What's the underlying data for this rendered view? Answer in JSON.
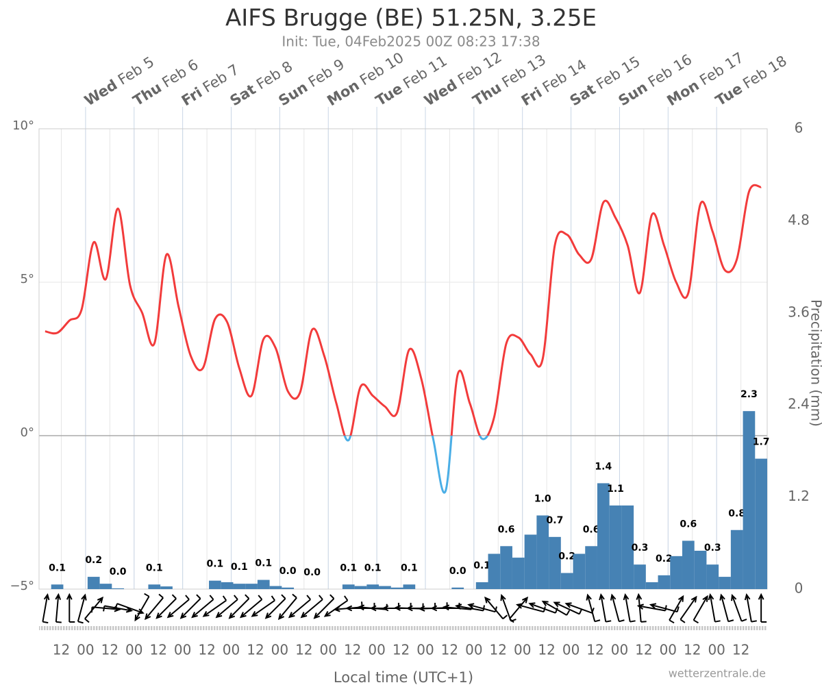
{
  "chart_data": {
    "type": "meteogram",
    "title": "AIFS Brugge (BE) 51.25N, 3.25E",
    "subtitle": "Init: Tue, 04Feb2025 00Z 08:23 17:38",
    "x_label": "Local time (UTC+1)",
    "y2_label": "Precipitation (mm)",
    "credit": "wetterzentrale.de",
    "xlim": [
      "2025-02-04T01:00",
      "2025-02-19T01:00"
    ],
    "ylim": [
      -5,
      10
    ],
    "yticks": [
      {
        "value": -5,
        "label": "−5°"
      },
      {
        "value": 0,
        "label": "0°"
      },
      {
        "value": 5,
        "label": "5°"
      },
      {
        "value": 10,
        "label": "10°"
      }
    ],
    "y2lim": [
      0,
      6
    ],
    "y2ticks": [
      0,
      1.2,
      2.4,
      3.6,
      4.8,
      6
    ],
    "grid": true,
    "day_ticks": [
      {
        "value": "2025-02-05T00:00",
        "weekday": "Wed",
        "day": "Feb 5"
      },
      {
        "value": "2025-02-06T00:00",
        "weekday": "Thu",
        "day": "Feb 6"
      },
      {
        "value": "2025-02-07T00:00",
        "weekday": "Fri",
        "day": "Feb 7"
      },
      {
        "value": "2025-02-08T00:00",
        "weekday": "Sat",
        "day": "Feb 8"
      },
      {
        "value": "2025-02-09T00:00",
        "weekday": "Sun",
        "day": "Feb 9"
      },
      {
        "value": "2025-02-10T00:00",
        "weekday": "Mon",
        "day": "Feb 10"
      },
      {
        "value": "2025-02-11T00:00",
        "weekday": "Tue",
        "day": "Feb 11"
      },
      {
        "value": "2025-02-12T00:00",
        "weekday": "Wed",
        "day": "Feb 12"
      },
      {
        "value": "2025-02-13T00:00",
        "weekday": "Thu",
        "day": "Feb 13"
      },
      {
        "value": "2025-02-14T00:00",
        "weekday": "Fri",
        "day": "Feb 14"
      },
      {
        "value": "2025-02-15T00:00",
        "weekday": "Sat",
        "day": "Feb 15"
      },
      {
        "value": "2025-02-16T00:00",
        "weekday": "Sun",
        "day": "Feb 16"
      },
      {
        "value": "2025-02-17T00:00",
        "weekday": "Mon",
        "day": "Feb 17"
      },
      {
        "value": "2025-02-18T00:00",
        "weekday": "Tue",
        "day": "Feb 18"
      }
    ],
    "xticks": [
      {
        "value": "2025-02-04T12:00",
        "label": "12"
      },
      {
        "value": "2025-02-05T00:00",
        "label": "00"
      },
      {
        "value": "2025-02-05T12:00",
        "label": "12"
      },
      {
        "value": "2025-02-06T00:00",
        "label": "00"
      },
      {
        "value": "2025-02-06T12:00",
        "label": "12"
      },
      {
        "value": "2025-02-07T00:00",
        "label": "00"
      },
      {
        "value": "2025-02-07T12:00",
        "label": "12"
      },
      {
        "value": "2025-02-08T00:00",
        "label": "00"
      },
      {
        "value": "2025-02-08T12:00",
        "label": "12"
      },
      {
        "value": "2025-02-09T00:00",
        "label": "00"
      },
      {
        "value": "2025-02-09T12:00",
        "label": "12"
      },
      {
        "value": "2025-02-10T00:00",
        "label": "00"
      },
      {
        "value": "2025-02-10T12:00",
        "label": "12"
      },
      {
        "value": "2025-02-11T00:00",
        "label": "00"
      },
      {
        "value": "2025-02-11T12:00",
        "label": "12"
      },
      {
        "value": "2025-02-12T00:00",
        "label": "00"
      },
      {
        "value": "2025-02-12T12:00",
        "label": "12"
      },
      {
        "value": "2025-02-13T00:00",
        "label": "00"
      },
      {
        "value": "2025-02-13T12:00",
        "label": "12"
      },
      {
        "value": "2025-02-14T00:00",
        "label": "00"
      },
      {
        "value": "2025-02-14T12:00",
        "label": "12"
      },
      {
        "value": "2025-02-15T00:00",
        "label": "00"
      },
      {
        "value": "2025-02-15T12:00",
        "label": "12"
      },
      {
        "value": "2025-02-16T00:00",
        "label": "00"
      },
      {
        "value": "2025-02-16T12:00",
        "label": "12"
      },
      {
        "value": "2025-02-17T00:00",
        "label": "00"
      },
      {
        "value": "2025-02-17T12:00",
        "label": "12"
      },
      {
        "value": "2025-02-18T00:00",
        "label": "00"
      },
      {
        "value": "2025-02-18T12:00",
        "label": "12"
      }
    ],
    "x": [
      "2025-02-04T04:00",
      "2025-02-04T10:00",
      "2025-02-04T16:00",
      "2025-02-04T22:00",
      "2025-02-05T04:00",
      "2025-02-05T10:00",
      "2025-02-05T16:00",
      "2025-02-05T22:00",
      "2025-02-06T04:00",
      "2025-02-06T10:00",
      "2025-02-06T16:00",
      "2025-02-06T22:00",
      "2025-02-07T04:00",
      "2025-02-07T10:00",
      "2025-02-07T16:00",
      "2025-02-07T22:00",
      "2025-02-08T04:00",
      "2025-02-08T10:00",
      "2025-02-08T16:00",
      "2025-02-08T22:00",
      "2025-02-09T04:00",
      "2025-02-09T10:00",
      "2025-02-09T16:00",
      "2025-02-09T22:00",
      "2025-02-10T04:00",
      "2025-02-10T10:00",
      "2025-02-10T16:00",
      "2025-02-10T22:00",
      "2025-02-11T04:00",
      "2025-02-11T10:00",
      "2025-02-11T16:00",
      "2025-02-11T22:00",
      "2025-02-12T04:00",
      "2025-02-12T10:00",
      "2025-02-12T16:00",
      "2025-02-12T22:00",
      "2025-02-13T04:00",
      "2025-02-13T10:00",
      "2025-02-13T16:00",
      "2025-02-13T22:00",
      "2025-02-14T04:00",
      "2025-02-14T10:00",
      "2025-02-14T16:00",
      "2025-02-14T22:00",
      "2025-02-15T04:00",
      "2025-02-15T10:00",
      "2025-02-15T16:00",
      "2025-02-15T22:00",
      "2025-02-16T04:00",
      "2025-02-16T10:00",
      "2025-02-16T16:00",
      "2025-02-16T22:00",
      "2025-02-17T04:00",
      "2025-02-17T10:00",
      "2025-02-17T16:00",
      "2025-02-17T22:00",
      "2025-02-18T04:00",
      "2025-02-18T10:00",
      "2025-02-18T16:00",
      "2025-02-18T22:00"
    ],
    "bar_hours": 6,
    "temperature": {
      "color_above": "#f23b3b",
      "color_below": "#4aaee6",
      "values": [
        3.4,
        3.35,
        3.75,
        4.1,
        6.3,
        5.1,
        7.4,
        4.9,
        4.0,
        3.0,
        5.9,
        4.2,
        2.6,
        2.2,
        3.8,
        3.7,
        2.2,
        1.3,
        3.15,
        2.85,
        1.45,
        1.4,
        3.45,
        2.6,
        1.05,
        -0.15,
        1.6,
        1.3,
        0.95,
        0.75,
        2.8,
        1.85,
        -0.15,
        -1.8,
        2.0,
        1.05,
        -0.1,
        0.6,
        3.0,
        3.2,
        2.65,
        2.5,
        6.2,
        6.55,
        5.9,
        5.75,
        7.6,
        7.1,
        6.2,
        4.65,
        7.2,
        6.2,
        5.0,
        4.65,
        7.55,
        6.65,
        5.4,
        5.75,
        7.95,
        8.1
      ]
    },
    "precipitation": {
      "color": "#4682b4",
      "axis": "y2",
      "values": [
        0,
        0.06,
        0,
        0,
        0.16,
        0.07,
        0.01,
        0,
        0,
        0.06,
        0.035,
        0,
        0,
        0,
        0.11,
        0.09,
        0.07,
        0.07,
        0.12,
        0.04,
        0.02,
        0,
        0,
        0,
        0,
        0.06,
        0.04,
        0.06,
        0.04,
        0.02,
        0.06,
        0,
        0,
        0,
        0.02,
        0,
        0.09,
        0.46,
        0.56,
        0.41,
        0.71,
        0.96,
        0.68,
        0.21,
        0.46,
        0.56,
        1.38,
        1.09,
        1.09,
        0.32,
        0.09,
        0.18,
        0.43,
        0.63,
        0.5,
        0.32,
        0.16,
        0.77,
        2.32,
        1.7
      ],
      "value_labels": [
        null,
        "0.1",
        null,
        null,
        "0.2",
        null,
        "0.0",
        null,
        null,
        "0.1",
        null,
        null,
        null,
        null,
        "0.1",
        null,
        "0.1",
        null,
        "0.1",
        null,
        "0.0",
        null,
        "0.0",
        null,
        null,
        "0.1",
        null,
        "0.1",
        null,
        null,
        "0.1",
        null,
        null,
        null,
        "0.0",
        null,
        "0.1",
        null,
        "0.6",
        null,
        null,
        "1.0",
        "0.7",
        "0.2",
        null,
        "0.6",
        "1.4",
        "1.1",
        null,
        "0.3",
        null,
        "0.2",
        null,
        "0.6",
        null,
        "0.3",
        null,
        "0.8",
        "2.3",
        "1.7"
      ]
    },
    "wind": {
      "direction": [
        10,
        5,
        0,
        15,
        40,
        95,
        100,
        110,
        210,
        220,
        225,
        230,
        225,
        230,
        235,
        230,
        225,
        230,
        235,
        225,
        220,
        230,
        230,
        225,
        235,
        265,
        270,
        275,
        270,
        270,
        272,
        270,
        268,
        270,
        275,
        280,
        285,
        320,
        340,
        40,
        285,
        290,
        300,
        295,
        290,
        345,
        350,
        345,
        350,
        355,
        280,
        285,
        30,
        35,
        30,
        350,
        345,
        340,
        350,
        0
      ]
    }
  }
}
